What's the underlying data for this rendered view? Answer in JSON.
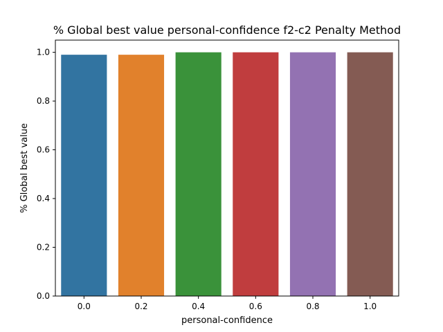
{
  "chart_data": {
    "type": "bar",
    "title": "% Global best value personal-confidence f2-c2 Penalty Method",
    "xlabel": "personal-confidence",
    "ylabel": "% Global best value",
    "categories": [
      "0.0",
      "0.2",
      "0.4",
      "0.6",
      "0.8",
      "1.0"
    ],
    "values": [
      0.99,
      0.99,
      1.0,
      1.0,
      1.0,
      1.0
    ],
    "colors": [
      "#3274a1",
      "#e1812c",
      "#3a923a",
      "#c03d3e",
      "#9372b2",
      "#845b53"
    ],
    "ylim": [
      0,
      1.05
    ],
    "yticks": [
      0.0,
      0.2,
      0.4,
      0.6,
      0.8,
      1.0
    ],
    "ytick_labels": [
      "0.0",
      "0.2",
      "0.4",
      "0.6",
      "0.8",
      "1.0"
    ],
    "grid": false,
    "legend": "none"
  }
}
